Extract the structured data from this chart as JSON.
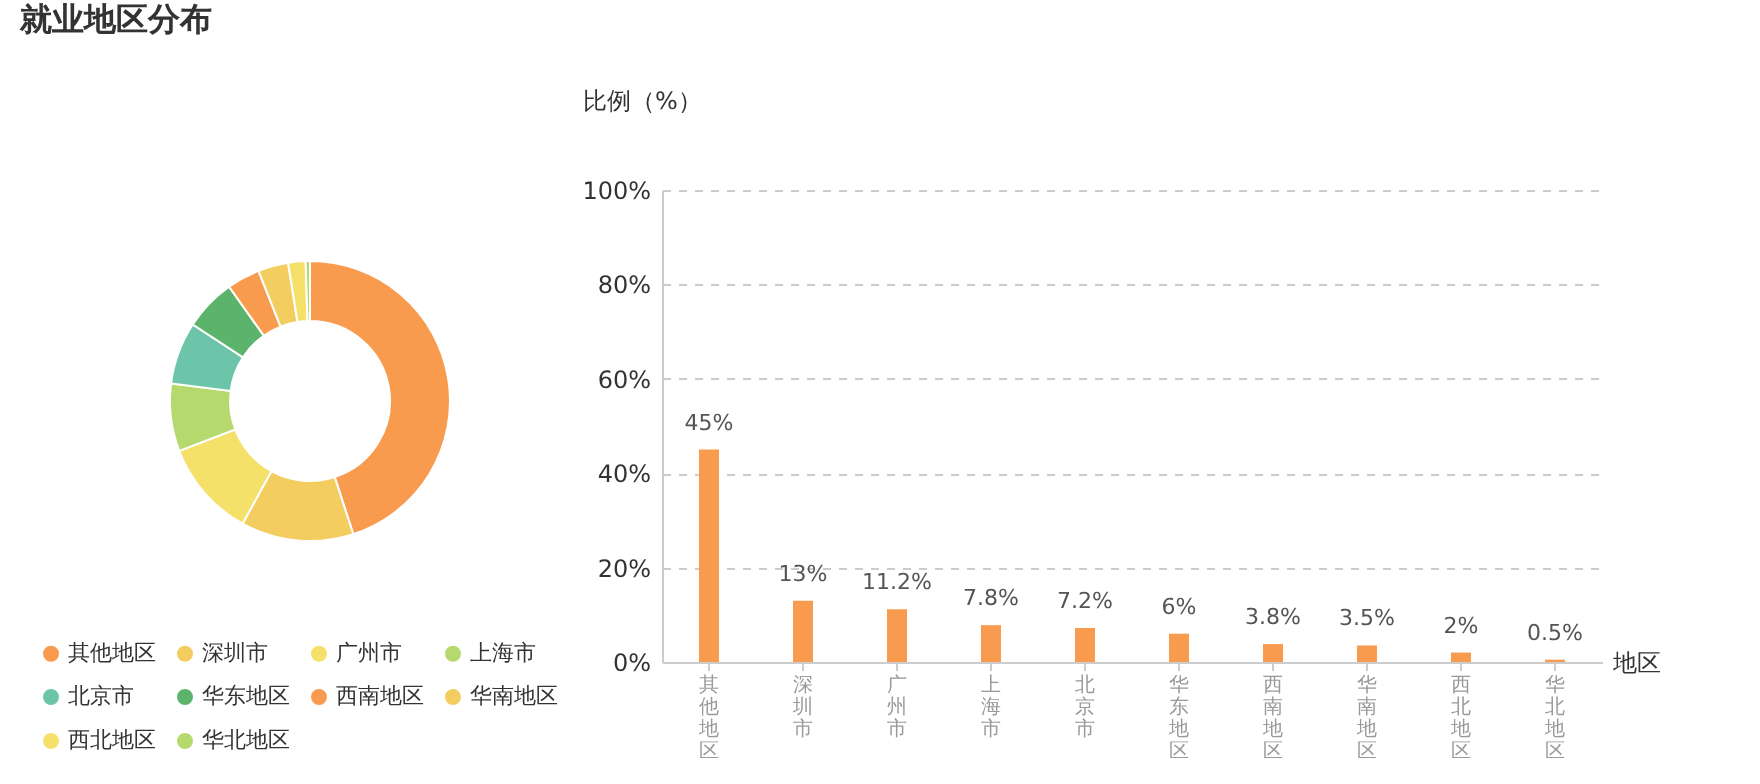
{
  "chart_data": [
    {
      "type": "donut",
      "title": "就业地区分布",
      "categories": [
        "其他地区",
        "深圳市",
        "广州市",
        "上海市",
        "北京市",
        "华东地区",
        "西南地区",
        "华南地区",
        "西北地区",
        "华北地区"
      ],
      "values": [
        45,
        13,
        11.2,
        7.8,
        7.2,
        6,
        3.8,
        3.5,
        2,
        0.5
      ],
      "colors": [
        "#f99b4e",
        "#f3cd5f",
        "#f5e06a",
        "#b6d96e",
        "#6cc5a9",
        "#5cb46c",
        "#f99b4e",
        "#f3cd5f",
        "#f5e06a",
        "#b6d96e"
      ],
      "legend": "bottom"
    },
    {
      "type": "bar",
      "xlabel": "地区",
      "ylabel": "比例（%）",
      "categories": [
        "其他地区",
        "深圳市",
        "广州市",
        "上海市",
        "北京市",
        "华东地区",
        "西南地区",
        "华南地区",
        "西北地区",
        "华北地区"
      ],
      "values": [
        45,
        13,
        11.2,
        7.8,
        7.2,
        6,
        3.8,
        3.5,
        2,
        0.5
      ],
      "color": "#f99b4e",
      "ylim": [
        0,
        100
      ],
      "yticks": [
        {
          "value": 0,
          "label": "0%"
        },
        {
          "value": 20,
          "label": "20%"
        },
        {
          "value": 40,
          "label": "40%"
        },
        {
          "value": 60,
          "label": "60%"
        },
        {
          "value": 80,
          "label": "80%"
        },
        {
          "value": 100,
          "label": "100%"
        }
      ],
      "grid": "y",
      "value_labels": [
        "45%",
        "13%",
        "11.2%",
        "7.8%",
        "7.2%",
        "6%",
        "3.8%",
        "3.5%",
        "2%",
        "0.5%"
      ]
    }
  ]
}
